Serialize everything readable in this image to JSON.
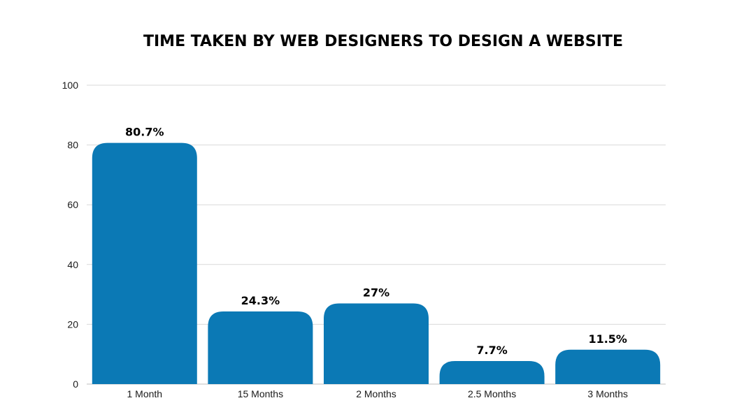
{
  "chart_data": {
    "type": "bar",
    "title": "TIME TAKEN BY WEB DESIGNERS TO DESIGN A WEBSITE",
    "categories": [
      "1 Month",
      "15 Months",
      "2 Months",
      "2.5 Months",
      "3 Months"
    ],
    "values": [
      80.7,
      24.3,
      27,
      7.7,
      11.5
    ],
    "data_labels": [
      "80.7%",
      "24.3%",
      "27%",
      "7.7%",
      "11.5%"
    ],
    "yticks": [
      "0",
      "20",
      "40",
      "60",
      "80",
      "100"
    ],
    "ylim": [
      0,
      100
    ],
    "grid": true,
    "legend": "none",
    "bar_color": "#0b79b5"
  }
}
